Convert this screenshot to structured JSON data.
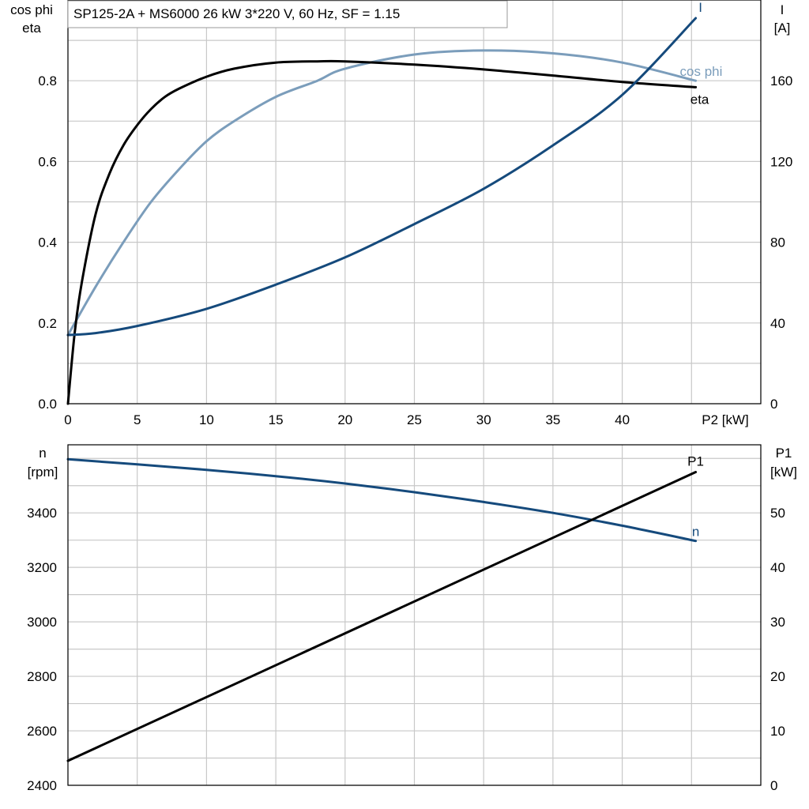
{
  "title": "SP125-2A + MS6000   26 kW   3*220 V, 60 Hz, SF = 1.15",
  "colors": {
    "eta": "#000000",
    "cos_phi": "#7b9dbb",
    "I": "#154a7c",
    "n": "#154a7c",
    "P1": "#000000",
    "grid": "#c8c8c8"
  },
  "top": {
    "left_axis_title": [
      "cos phi",
      "eta"
    ],
    "right_axis_title": [
      "I",
      "[A]"
    ],
    "x_axis_title": "P2 [kW]"
  },
  "bottom": {
    "left_axis_title": [
      "n",
      "[rpm]"
    ],
    "right_axis_title": [
      "P1",
      "[kW]"
    ]
  },
  "chart_data": [
    {
      "type": "line",
      "title": "SP125-2A + MS6000   26 kW   3*220 V, 60 Hz, SF = 1.15",
      "xlabel": "P2 [kW]",
      "ylabel_left": "cos phi / eta",
      "ylabel_right": "I [A]",
      "xlim": [
        0,
        50
      ],
      "ylim_left": [
        0,
        1.0
      ],
      "ylim_right": [
        0,
        200
      ],
      "grid": true,
      "x_ticks": [
        "0",
        "5",
        "10",
        "15",
        "20",
        "25",
        "30",
        "35",
        "40"
      ],
      "y_left_ticks": [
        "0.0",
        "0.2",
        "0.4",
        "0.6",
        "0.8"
      ],
      "y_right_ticks": [
        "0",
        "40",
        "80",
        "120",
        "160"
      ],
      "series": [
        {
          "name": "eta",
          "axis": "left",
          "x": [
            0,
            0.5,
            1,
            2,
            3,
            4,
            5,
            6,
            7,
            8,
            10,
            12,
            15,
            18,
            20,
            25,
            30,
            35,
            40,
            45.3
          ],
          "values": [
            0,
            0.18,
            0.3,
            0.47,
            0.57,
            0.64,
            0.69,
            0.73,
            0.76,
            0.78,
            0.81,
            0.83,
            0.845,
            0.848,
            0.848,
            0.84,
            0.828,
            0.813,
            0.797,
            0.784
          ]
        },
        {
          "name": "cos phi",
          "axis": "left",
          "x": [
            0,
            2,
            4,
            6,
            8,
            10,
            12,
            15,
            18,
            20,
            25,
            30,
            35,
            40,
            45.3
          ],
          "values": [
            0.17,
            0.29,
            0.4,
            0.5,
            0.58,
            0.65,
            0.7,
            0.76,
            0.8,
            0.83,
            0.865,
            0.875,
            0.868,
            0.845,
            0.8
          ]
        },
        {
          "name": "I",
          "axis": "right",
          "x": [
            0,
            2,
            5,
            10,
            15,
            20,
            25,
            30,
            35,
            40,
            45.3
          ],
          "values": [
            34,
            35,
            38.5,
            47,
            59,
            72.5,
            89,
            106.5,
            128,
            153,
            191
          ]
        }
      ]
    },
    {
      "type": "line",
      "xlabel": "P2 [kW]",
      "ylabel_left": "n [rpm]",
      "ylabel_right": "P1 [kW]",
      "xlim": [
        0,
        50
      ],
      "ylim_left": [
        2400,
        3650
      ],
      "ylim_right": [
        0,
        62.5
      ],
      "grid": true,
      "y_left_ticks": [
        "2400",
        "2600",
        "2800",
        "3000",
        "3200",
        "3400"
      ],
      "y_right_ticks": [
        "0",
        "10",
        "20",
        "30",
        "40",
        "50"
      ],
      "series": [
        {
          "name": "n",
          "axis": "left",
          "x": [
            0,
            5,
            10,
            15,
            20,
            25,
            30,
            35,
            40,
            45.3
          ],
          "values": [
            3597,
            3578,
            3558,
            3535,
            3508,
            3476,
            3440,
            3400,
            3353,
            3297
          ]
        },
        {
          "name": "P1",
          "axis": "right",
          "x": [
            0,
            45.3
          ],
          "values": [
            4.5,
            57.5
          ]
        }
      ]
    }
  ]
}
